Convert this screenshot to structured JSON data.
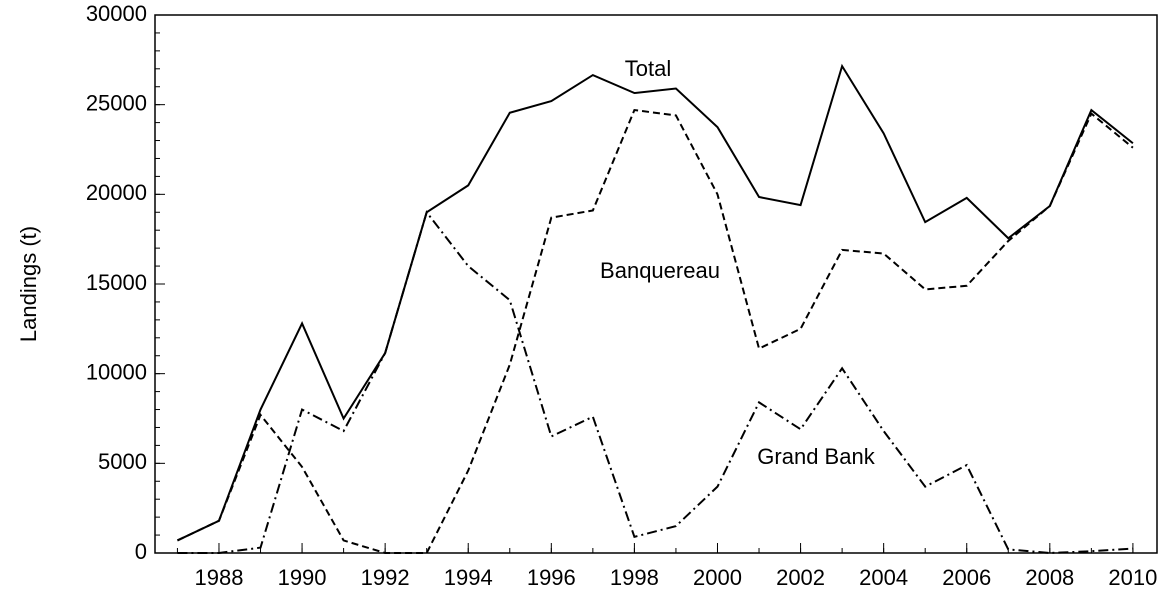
{
  "chart_data": {
    "type": "line",
    "y_label": "Landings (t)",
    "x": [
      1987,
      1988,
      1989,
      1990,
      1991,
      1992,
      1993,
      1994,
      1995,
      1996,
      1997,
      1998,
      1999,
      2000,
      2001,
      2002,
      2003,
      2004,
      2005,
      2006,
      2007,
      2008,
      2009,
      2010
    ],
    "series": [
      {
        "name": "Total",
        "color": "#000000",
        "dash": "solid",
        "values": [
          700,
          1800,
          8000,
          12800,
          7500,
          11150,
          19000,
          20500,
          24550,
          25200,
          26650,
          25650,
          25900,
          23750,
          19850,
          19400,
          27150,
          23400,
          18450,
          19800,
          17550,
          19350,
          24700,
          22850
        ]
      },
      {
        "name": "Banquereau",
        "color": "#000000",
        "dash": "dashed",
        "values": [
          700,
          1800,
          7700,
          4800,
          700,
          0,
          0,
          4600,
          10500,
          18700,
          19100,
          24700,
          24400,
          20000,
          11400,
          12500,
          16900,
          16700,
          14700,
          14900,
          17400,
          19350,
          24500,
          22600
        ]
      },
      {
        "name": "Grand Bank",
        "color": "#000000",
        "dash": "dashdot",
        "values": [
          0,
          0,
          300,
          8000,
          6800,
          11150,
          19000,
          16000,
          14100,
          6500,
          7600,
          900,
          1500,
          3700,
          8400,
          6900,
          10300,
          6800,
          3700,
          4900,
          200,
          0,
          100,
          250
        ]
      }
    ],
    "xlim": [
      1986.46,
      2010.58
    ],
    "ylim": [
      0,
      30000
    ],
    "xticks": [
      1988,
      1990,
      1992,
      1994,
      1996,
      1998,
      2000,
      2002,
      2004,
      2006,
      2008,
      2010
    ],
    "yticks": [
      0,
      5000,
      10000,
      15000,
      20000,
      25000,
      30000
    ],
    "grid": false
  }
}
